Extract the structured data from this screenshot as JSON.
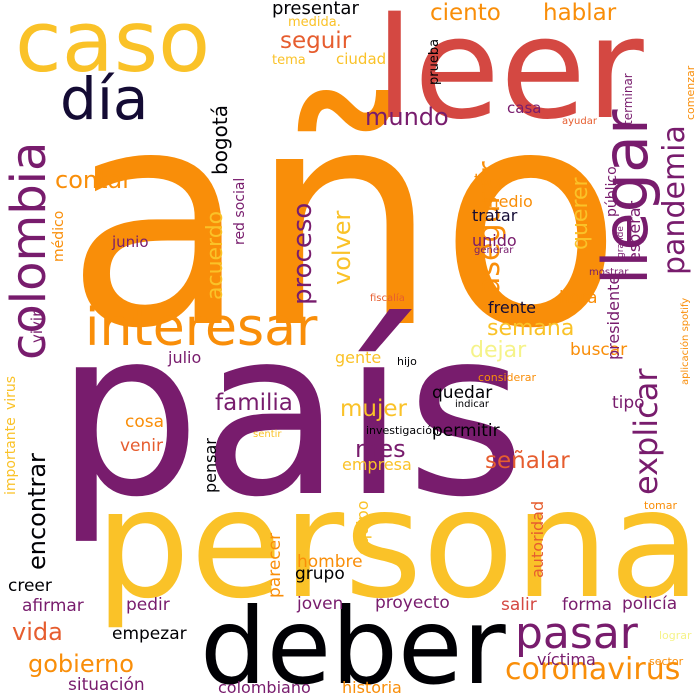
{
  "colors": {
    "orange": "#f98e09",
    "gold": "#fac228",
    "purple": "#781c6d",
    "dark": "#000004",
    "navy": "#140b34",
    "red": "#d44842",
    "salmon": "#e65d2f",
    "pale": "#f5f389",
    "rose": "#bc3754"
  },
  "words": [
    {
      "t": "año",
      "c": "#f98e09"
    },
    {
      "t": "país",
      "c": "#781c6d"
    },
    {
      "t": "persona",
      "c": "#fac228"
    },
    {
      "t": "deber",
      "c": "#000004"
    },
    {
      "t": "leer",
      "c": "#d44842"
    },
    {
      "t": "caso",
      "c": "#fac228"
    },
    {
      "t": "día",
      "c": "#140b34"
    },
    {
      "t": "colombia",
      "c": "#781c6d"
    },
    {
      "t": "interesar",
      "c": "#f98e09"
    },
    {
      "t": "llegar",
      "c": "#781c6d"
    },
    {
      "t": "pasar",
      "c": "#781c6d"
    },
    {
      "t": "coronavirus",
      "c": "#f98e09"
    },
    {
      "t": "explicar",
      "c": "#781c6d"
    },
    {
      "t": "pandemia",
      "c": "#781c6d"
    },
    {
      "t": "encontrar",
      "c": "#000004"
    },
    {
      "t": "asegurar",
      "c": "#f98e09"
    },
    {
      "t": "proceso",
      "c": "#781c6d"
    },
    {
      "t": "volver",
      "c": "#fac228"
    },
    {
      "t": "acuerdo",
      "c": "#fac228"
    },
    {
      "t": "bogotá",
      "c": "#000004"
    },
    {
      "t": "mundo",
      "c": "#781c6d"
    },
    {
      "t": "seguir",
      "c": "#e65d2f"
    },
    {
      "t": "hablar",
      "c": "#f98e09"
    },
    {
      "t": "ciento",
      "c": "#f98e09"
    },
    {
      "t": "presentar",
      "c": "#000004"
    },
    {
      "t": "contar",
      "c": "#f98e09"
    },
    {
      "t": "familia",
      "c": "#781c6d"
    },
    {
      "t": "mujer",
      "c": "#fac228"
    },
    {
      "t": "señalar",
      "c": "#e65d2f"
    },
    {
      "t": "mes",
      "c": "#781c6d"
    },
    {
      "t": "semana",
      "c": "#fac228"
    },
    {
      "t": "dejar",
      "c": "#f5f389"
    },
    {
      "t": "querer",
      "c": "#fac228"
    },
    {
      "t": "gobierno",
      "c": "#f98e09"
    },
    {
      "t": "vida",
      "c": "#e65d2f"
    },
    {
      "t": "situación",
      "c": "#781c6d"
    },
    {
      "t": "colombiano",
      "c": "#781c6d"
    },
    {
      "t": "historia",
      "c": "#f98e09"
    },
    {
      "t": "víctima",
      "c": "#781c6d"
    },
    {
      "t": "policía",
      "c": "#781c6d"
    },
    {
      "t": "forma",
      "c": "#781c6d"
    },
    {
      "t": "salir",
      "c": "#d44842"
    },
    {
      "t": "proyecto",
      "c": "#781c6d"
    },
    {
      "t": "joven",
      "c": "#781c6d"
    },
    {
      "t": "pedir",
      "c": "#781c6d"
    },
    {
      "t": "empezar",
      "c": "#000004"
    },
    {
      "t": "afirmar",
      "c": "#781c6d"
    },
    {
      "t": "creer",
      "c": "#000004"
    },
    {
      "t": "grupo",
      "c": "#000004"
    },
    {
      "t": "hombre",
      "c": "#f98e09"
    },
    {
      "t": "parecer",
      "c": "#f98e09"
    },
    {
      "t": "equipo",
      "c": "#fac228"
    },
    {
      "t": "autoridad",
      "c": "#e65d2f"
    },
    {
      "t": "empresa",
      "c": "#fac228"
    },
    {
      "t": "permitir",
      "c": "#000004"
    },
    {
      "t": "quedar",
      "c": "#000004"
    },
    {
      "t": "tipo",
      "c": "#781c6d"
    },
    {
      "t": "buscar",
      "c": "#f98e09"
    },
    {
      "t": "hora",
      "c": "#f98e09"
    },
    {
      "t": "frente",
      "c": "#140b34"
    },
    {
      "t": "gente",
      "c": "#fac228"
    },
    {
      "t": "julio",
      "c": "#781c6d"
    },
    {
      "t": "cosa",
      "c": "#f98e09"
    },
    {
      "t": "venir",
      "c": "#e65d2f"
    },
    {
      "t": "pensar",
      "c": "#000004"
    },
    {
      "t": "vivir",
      "c": "#781c6d"
    },
    {
      "t": "junio",
      "c": "#781c6d"
    },
    {
      "t": "médico",
      "c": "#f98e09"
    },
    {
      "t": "red social",
      "c": "#781c6d"
    },
    {
      "t": "tú",
      "c": "#f98e09"
    },
    {
      "t": "medio",
      "c": "#f98e09"
    },
    {
      "t": "tratar",
      "c": "#140b34"
    },
    {
      "t": "unido",
      "c": "#781c6d"
    },
    {
      "t": "generar",
      "c": "#781c6d"
    },
    {
      "t": "grande",
      "c": "#781c6d"
    },
    {
      "t": "público",
      "c": "#781c6d"
    },
    {
      "t": "esperar",
      "c": "#781c6d"
    },
    {
      "t": "presidente",
      "c": "#781c6d"
    },
    {
      "t": "mostrar",
      "c": "#781c6d"
    },
    {
      "t": "aplicación spotify",
      "c": "#f98e09"
    },
    {
      "t": "casa",
      "c": "#781c6d"
    },
    {
      "t": "ayudar",
      "c": "#e65d2f"
    },
    {
      "t": "terminar",
      "c": "#781c6d"
    },
    {
      "t": "comenzar",
      "c": "#f98e09"
    },
    {
      "t": "prueba",
      "c": "#000004"
    },
    {
      "t": "ciudad",
      "c": "#fac228"
    },
    {
      "t": "tema",
      "c": "#fac228"
    },
    {
      "t": "medida.",
      "c": "#fac228"
    },
    {
      "t": "fiscalía",
      "c": "#e65d2f"
    },
    {
      "t": "hijo",
      "c": "#000004"
    },
    {
      "t": "investigación",
      "c": "#000004"
    },
    {
      "t": "considerar",
      "c": "#f98e09"
    },
    {
      "t": "indicar",
      "c": "#000004"
    },
    {
      "t": "importante",
      "c": "#fac228"
    },
    {
      "t": "virus",
      "c": "#fac228"
    },
    {
      "t": "sentir",
      "c": "#fac228"
    },
    {
      "t": "tomar",
      "c": "#f98e09"
    },
    {
      "t": "lograr",
      "c": "#f5f389"
    },
    {
      "t": "sector",
      "c": "#f98e09"
    }
  ]
}
